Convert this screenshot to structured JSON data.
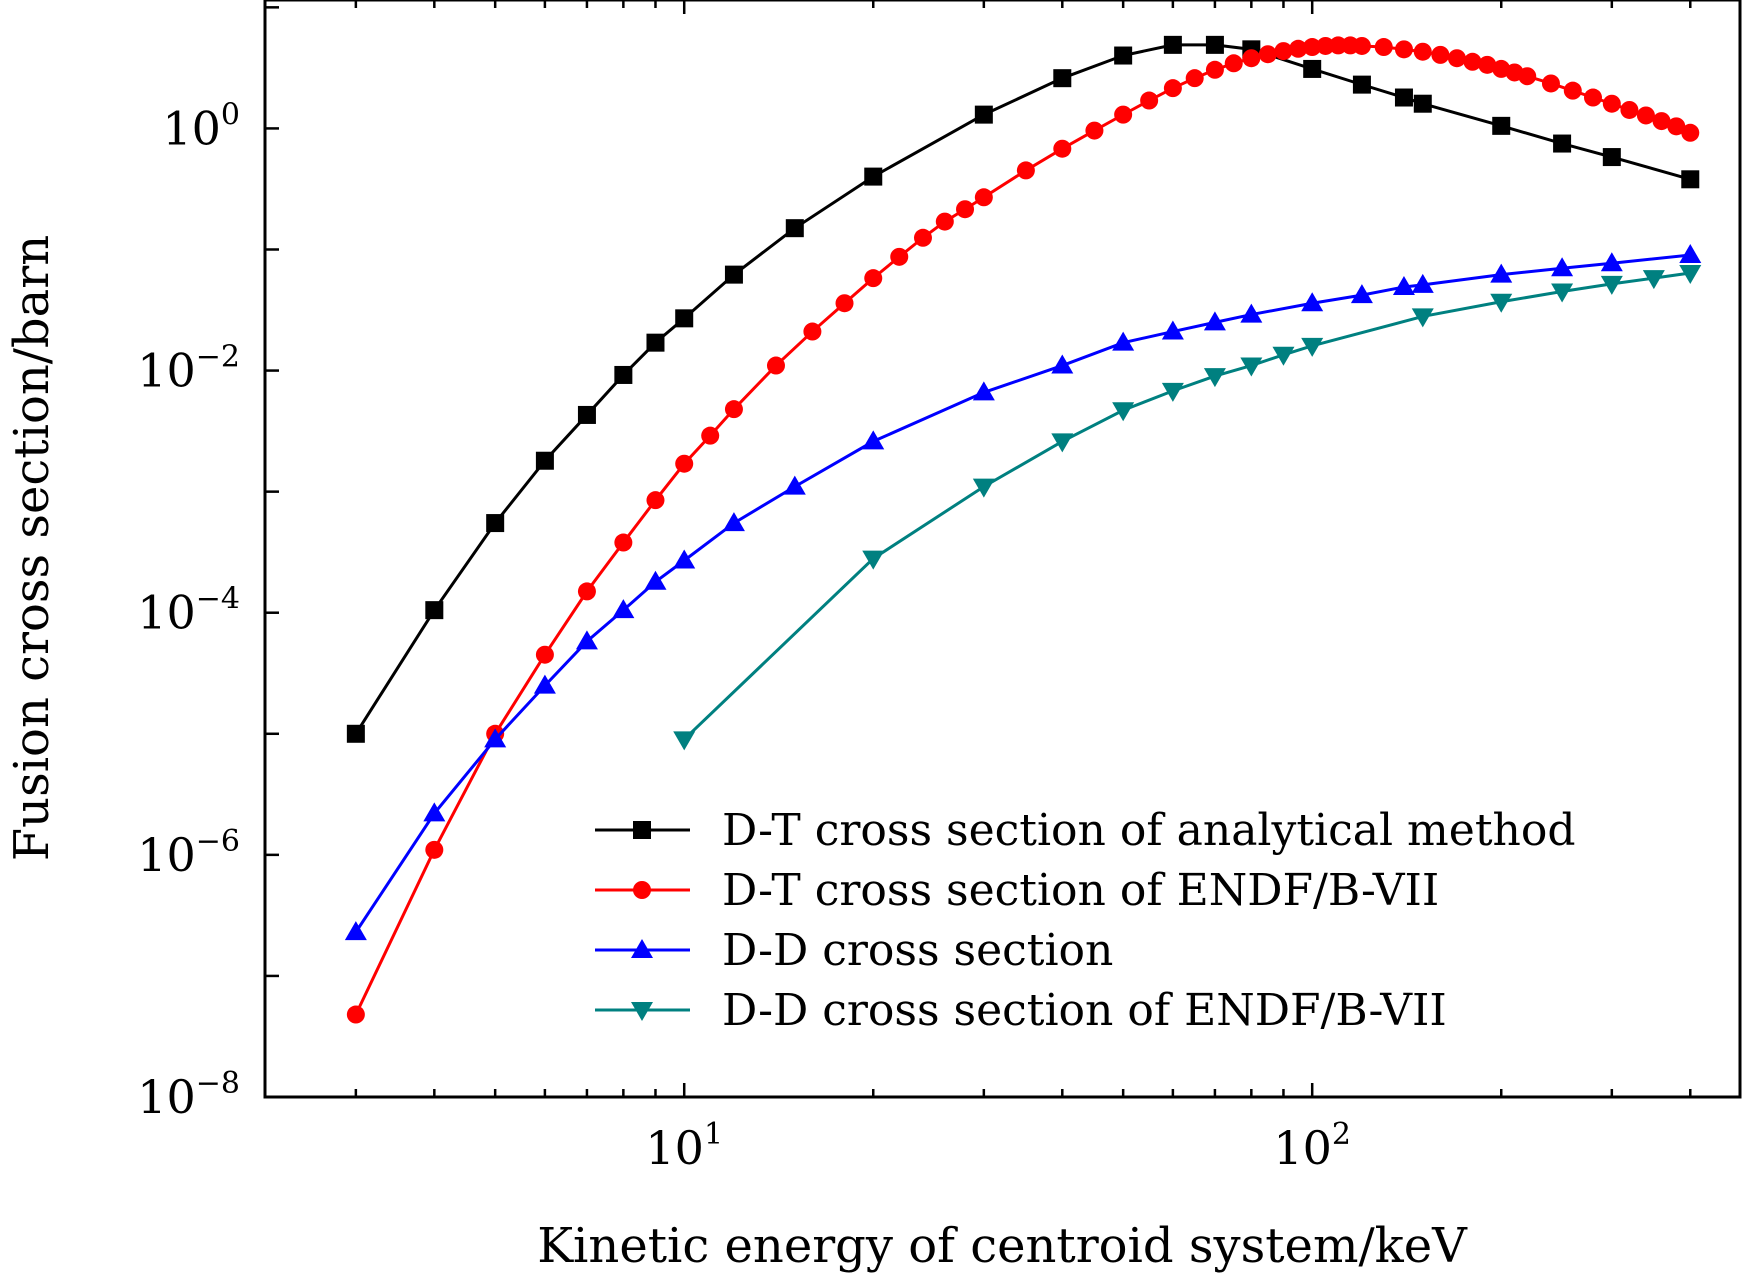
{
  "chart_data": {
    "type": "line",
    "title": "",
    "xlabel": "Kinetic energy of centroid system/keV",
    "ylabel": "Fusion cross section/barn",
    "xscale": "log",
    "yscale": "log",
    "xlim": [
      2.15,
      480
    ],
    "ylim": [
      1e-08,
      11.5
    ],
    "x_ticks": [
      {
        "value": 10,
        "base": "10",
        "exp": "1"
      },
      {
        "value": 100,
        "base": "10",
        "exp": "2"
      }
    ],
    "y_ticks": [
      {
        "value": 1e-08,
        "base": "10",
        "exp": "−8"
      },
      {
        "value": 1e-06,
        "base": "10",
        "exp": "−6"
      },
      {
        "value": 0.0001,
        "base": "10",
        "exp": "−4"
      },
      {
        "value": 0.01,
        "base": "10",
        "exp": "−2"
      },
      {
        "value": 1,
        "base": "10",
        "exp": "0"
      }
    ],
    "grid": false,
    "legend_position": "lower-right",
    "series": [
      {
        "name": "D-T cross section of analytical method",
        "color": "#000000",
        "marker": "square",
        "x": [
          3,
          4,
          5,
          6,
          7,
          8,
          9,
          10,
          12,
          15,
          20,
          30,
          40,
          50,
          60,
          70,
          80,
          100,
          120,
          140,
          150,
          200,
          250,
          300,
          400
        ],
        "y": [
          1e-05,
          0.000105,
          0.00055,
          0.0018,
          0.0043,
          0.0092,
          0.017,
          0.027,
          0.062,
          0.15,
          0.4,
          1.3,
          2.6,
          4.0,
          4.9,
          4.9,
          4.5,
          3.1,
          2.3,
          1.8,
          1.6,
          1.05,
          0.75,
          0.58,
          0.38
        ]
      },
      {
        "name": "D-T cross section of ENDF/B-VII",
        "color": "#ff0000",
        "marker": "circle",
        "x": [
          3,
          4,
          5,
          6,
          7,
          8,
          9,
          10,
          11,
          12,
          14,
          16,
          18,
          20,
          22,
          24,
          26,
          28,
          30,
          35,
          40,
          45,
          50,
          55,
          60,
          65,
          70,
          75,
          80,
          85,
          90,
          95,
          100,
          105,
          110,
          115,
          120,
          130,
          140,
          150,
          160,
          170,
          180,
          190,
          200,
          210,
          220,
          240,
          260,
          280,
          300,
          320,
          340,
          360,
          380,
          400
        ],
        "y": [
          4.8e-08,
          1.1e-06,
          1e-05,
          4.5e-05,
          0.00015,
          0.00038,
          0.00085,
          0.0017,
          0.0029,
          0.0048,
          0.011,
          0.021,
          0.036,
          0.058,
          0.087,
          0.125,
          0.17,
          0.215,
          0.27,
          0.45,
          0.68,
          0.96,
          1.3,
          1.7,
          2.15,
          2.6,
          3.05,
          3.45,
          3.8,
          4.1,
          4.35,
          4.55,
          4.7,
          4.8,
          4.85,
          4.85,
          4.8,
          4.7,
          4.5,
          4.3,
          4.05,
          3.8,
          3.55,
          3.35,
          3.1,
          2.9,
          2.7,
          2.35,
          2.05,
          1.8,
          1.6,
          1.42,
          1.28,
          1.15,
          1.04,
          0.92
        ]
      },
      {
        "name": "D-D cross section",
        "color": "#0000ff",
        "marker": "triangle-up",
        "x": [
          3,
          4,
          5,
          6,
          7,
          8,
          9,
          10,
          12,
          15,
          20,
          30,
          40,
          50,
          60,
          70,
          80,
          100,
          120,
          140,
          150,
          200,
          250,
          300,
          400
        ],
        "y": [
          2.3e-07,
          2.2e-06,
          9e-06,
          2.5e-05,
          5.8e-05,
          0.000105,
          0.00018,
          0.00027,
          0.00055,
          0.0011,
          0.0026,
          0.0066,
          0.011,
          0.017,
          0.021,
          0.025,
          0.029,
          0.036,
          0.042,
          0.049,
          0.051,
          0.062,
          0.07,
          0.077,
          0.09
        ]
      },
      {
        "name": "D-D cross section of ENDF/B-VII",
        "color": "#008080",
        "marker": "triangle-down",
        "x": [
          10,
          20,
          30,
          40,
          50,
          60,
          70,
          80,
          90,
          100,
          150,
          200,
          250,
          300,
          350,
          400
        ],
        "y": [
          9e-06,
          0.00028,
          0.0011,
          0.0026,
          0.0047,
          0.0068,
          0.009,
          0.011,
          0.0135,
          0.016,
          0.028,
          0.037,
          0.045,
          0.052,
          0.058,
          0.064
        ]
      }
    ]
  }
}
